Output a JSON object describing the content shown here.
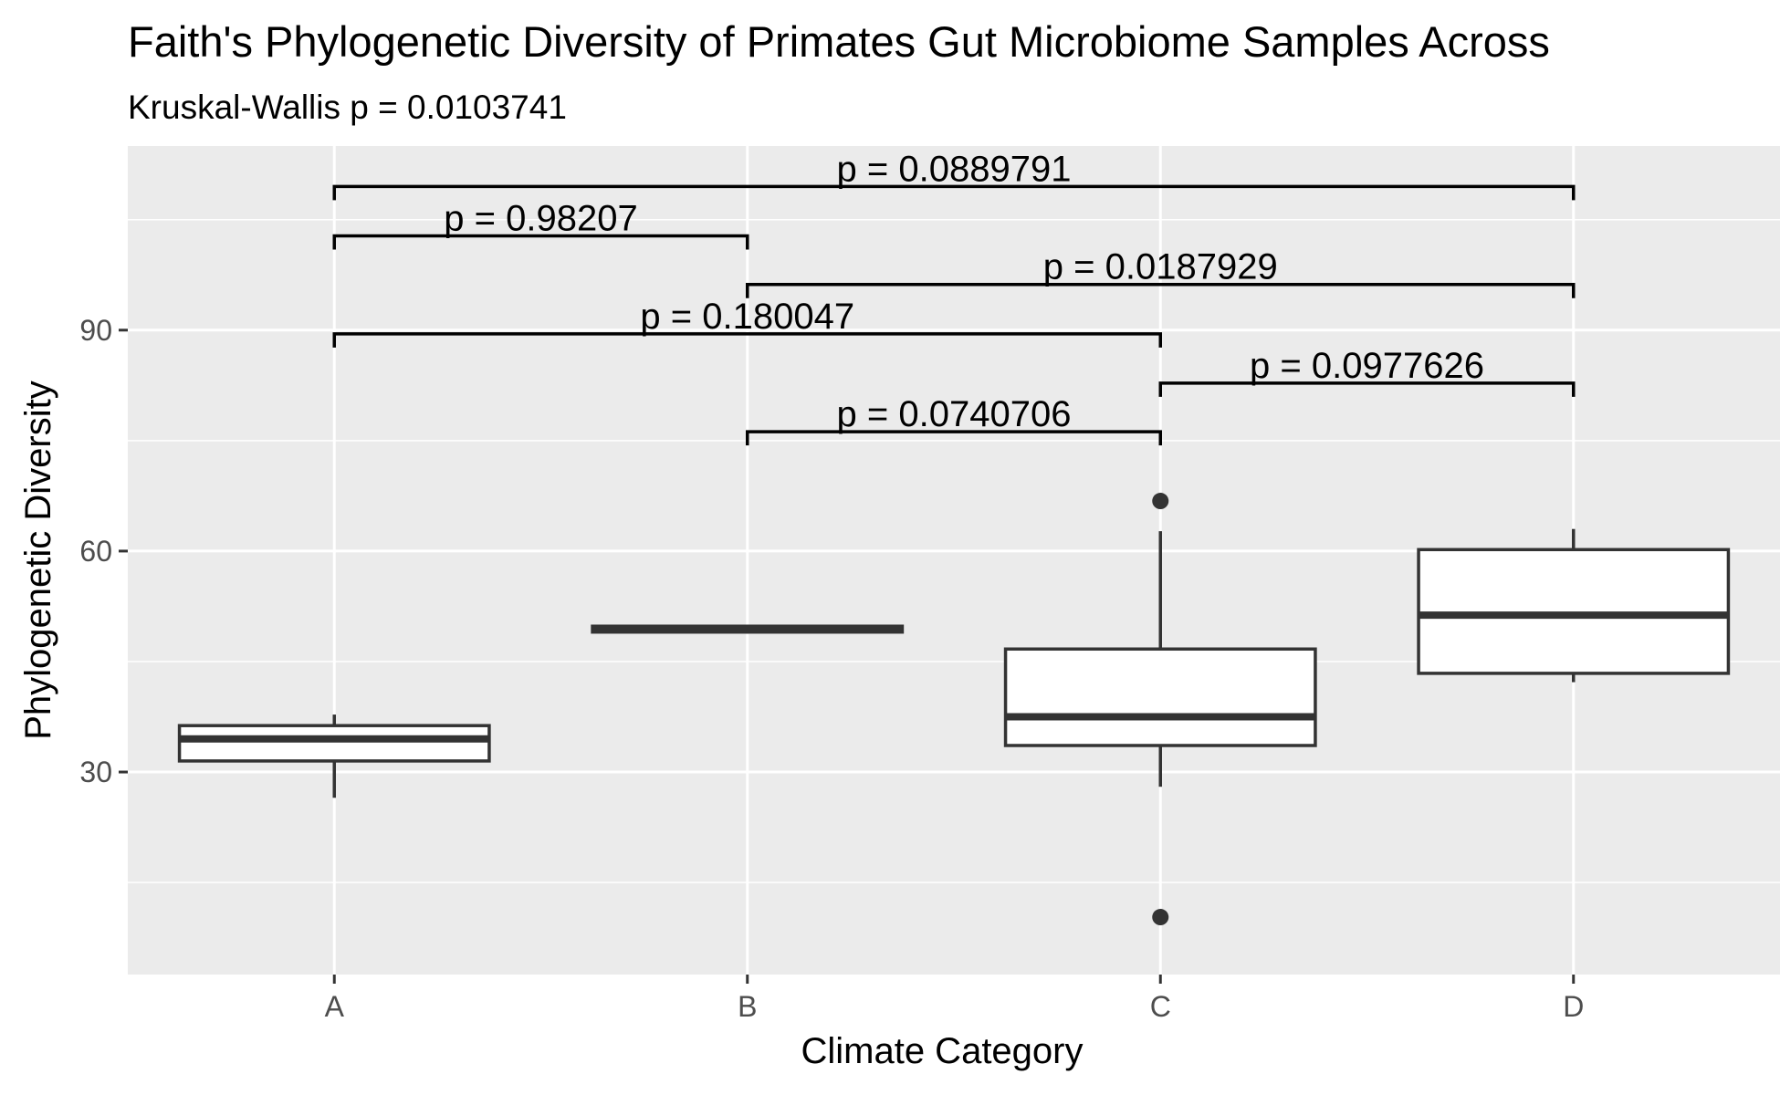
{
  "chart_data": {
    "type": "box",
    "title": "Faith's Phylogenetic Diversity of Primates Gut Microbiome Samples Across",
    "subtitle": "Kruskal-Wallis p = 0.0103741",
    "xlabel": "Climate Category",
    "ylabel": "Phylogenetic Diversity",
    "categories": [
      "A",
      "B",
      "C",
      "D"
    ],
    "ylim": [
      2.5,
      115
    ],
    "yticks": [
      30,
      60,
      90
    ],
    "yticks_minor": [
      15,
      45,
      75,
      105
    ],
    "grid": true,
    "boxes": [
      {
        "category": "A",
        "whisker_low": 26.5,
        "q1": 31.5,
        "median": 34.5,
        "q3": 36.3,
        "whisker_high": 37.8,
        "outliers": []
      },
      {
        "category": "B",
        "whisker_low": 48.8,
        "q1": 49.0,
        "median": 49.4,
        "q3": 49.8,
        "whisker_high": 50.0,
        "outliers": []
      },
      {
        "category": "C",
        "whisker_low": 28.0,
        "q1": 33.6,
        "median": 37.5,
        "q3": 46.7,
        "whisker_high": 62.7,
        "outliers": [
          66.8,
          10.3
        ]
      },
      {
        "category": "D",
        "whisker_low": 42.2,
        "q1": 43.4,
        "median": 51.3,
        "q3": 60.2,
        "whisker_high": 63.0,
        "outliers": []
      }
    ],
    "comparisons": [
      {
        "from": "A",
        "to": "D",
        "y": 109.5,
        "label": "p = 0.0889791"
      },
      {
        "from": "A",
        "to": "B",
        "y": 102.8,
        "label": "p = 0.98207"
      },
      {
        "from": "B",
        "to": "D",
        "y": 96.2,
        "label": "p = 0.0187929"
      },
      {
        "from": "A",
        "to": "C",
        "y": 89.5,
        "label": "p = 0.180047"
      },
      {
        "from": "C",
        "to": "D",
        "y": 82.8,
        "label": "p = 0.0977626"
      },
      {
        "from": "B",
        "to": "C",
        "y": 76.2,
        "label": "p = 0.0740706"
      }
    ],
    "colors": {
      "panel": "#ebebeb",
      "grid": "#ffffff",
      "box_fill": "#ffffff",
      "box_line": "#333333",
      "text": "#000000",
      "tick_text": "#4d4d4d"
    }
  }
}
